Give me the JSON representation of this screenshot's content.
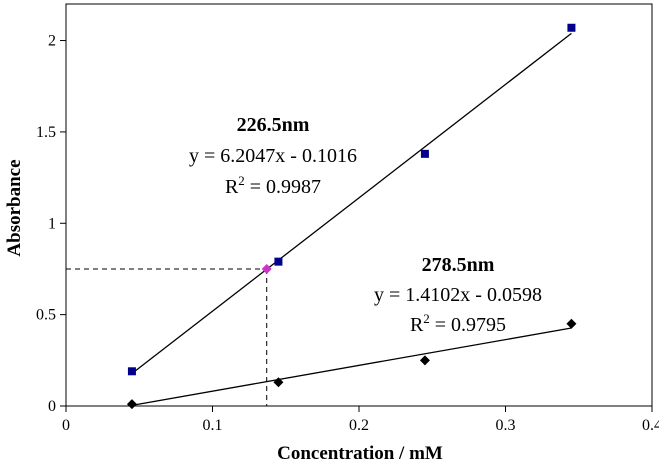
{
  "chart_data": {
    "type": "scatter",
    "xlabel": "Concentration / mM",
    "ylabel": "Absorbance",
    "xlim": [
      0,
      0.4
    ],
    "ylim": [
      0,
      2.2
    ],
    "x_ticks": [
      "0",
      "0.1",
      "0.2",
      "0.3",
      "0.4"
    ],
    "y_ticks": [
      "0",
      "0.5",
      "1",
      "1.5",
      "2"
    ],
    "grid": false,
    "series": [
      {
        "name": "226.5nm",
        "marker": "square",
        "color": "#00008B",
        "x": [
          0.045,
          0.145,
          0.245,
          0.345
        ],
        "y": [
          0.19,
          0.79,
          1.38,
          2.07
        ],
        "trendline": {
          "slope": 6.2047,
          "intercept": -0.1016,
          "equation": "y = 6.2047x - 0.1016",
          "r2_prefix": "R",
          "r2_sup": "2",
          "r2_value": " = 0.9987"
        }
      },
      {
        "name": "278.5nm",
        "marker": "diamond",
        "color": "#000000",
        "x": [
          0.045,
          0.145,
          0.245,
          0.345
        ],
        "y": [
          0.01,
          0.13,
          0.25,
          0.45
        ],
        "trendline": {
          "slope": 1.4102,
          "intercept": -0.0598,
          "equation": "y = 1.4102x - 0.0598",
          "r2_prefix": "R",
          "r2_sup": "2",
          "r2_value": " = 0.9795"
        }
      }
    ],
    "highlight_point": {
      "x": 0.137,
      "y": 0.75,
      "color": "#CC33CC"
    }
  }
}
